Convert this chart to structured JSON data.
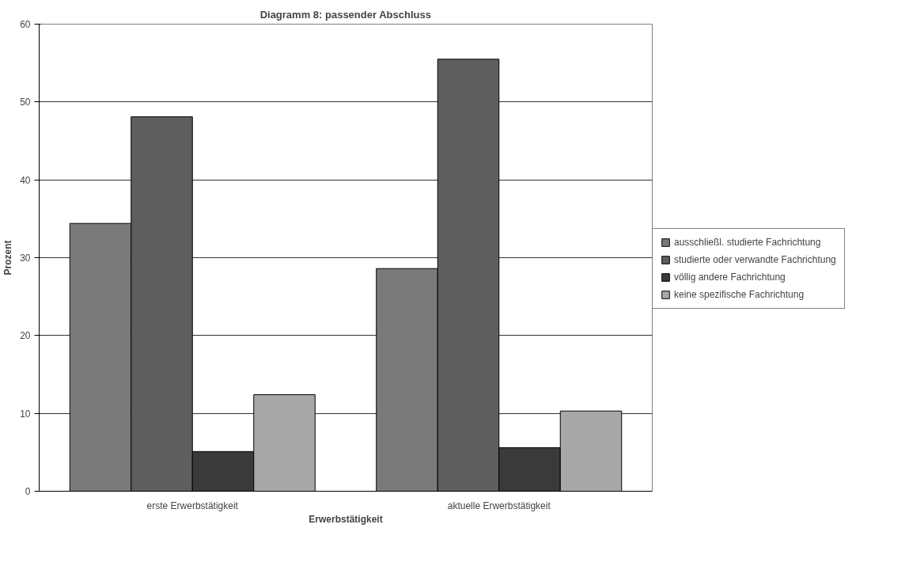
{
  "chart_data": {
    "type": "bar",
    "title": "Diagramm 8: passender Abschluss",
    "xlabel": "Erwerbstätigkeit",
    "ylabel": "Prozent",
    "categories": [
      "erste Erwerbstätigkeit",
      "aktuelle Erwerbstätigkeit"
    ],
    "series": [
      {
        "name": "ausschließl. studierte Fachrichtung",
        "color": "#7a7a7a",
        "values": [
          34.4,
          28.6
        ]
      },
      {
        "name": "studierte oder verwandte Fachrichtung",
        "color": "#5e5e5e",
        "values": [
          48.1,
          55.5
        ]
      },
      {
        "name": "völlig andere Fachrichtung",
        "color": "#3a3a3a",
        "values": [
          5.1,
          5.6
        ]
      },
      {
        "name": "keine spezifische Fachrichtung",
        "color": "#a8a8a8",
        "values": [
          12.4,
          10.3
        ]
      }
    ],
    "ylim": [
      0,
      60
    ],
    "yticks": [
      0,
      10,
      20,
      30,
      40,
      50,
      60
    ],
    "grid": "y",
    "legend": "right"
  }
}
